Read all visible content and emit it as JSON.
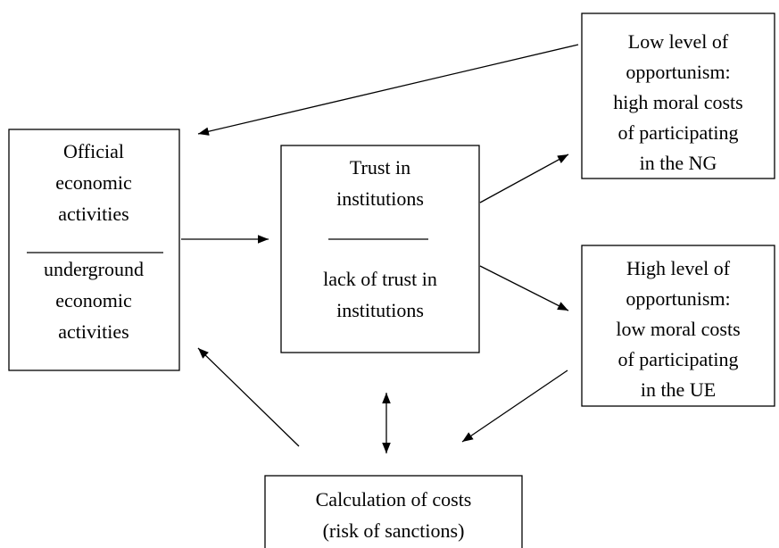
{
  "nodes": [
    {
      "upper": [
        "Official",
        "economic",
        "activities"
      ],
      "lower": [
        "underground",
        "economic",
        "activities"
      ]
    },
    {
      "upper": [
        "Trust in",
        "institutions"
      ],
      "lower": [
        "lack of trust in",
        "institutions"
      ]
    },
    {
      "lines": [
        "Low level of",
        "opportunism:",
        "high moral costs",
        "of participating",
        "in the NG"
      ]
    },
    {
      "lines": [
        "High level of",
        "opportunism:",
        "low moral costs",
        "of participating",
        "in the UE"
      ]
    },
    {
      "lines": [
        "Calculation of costs",
        "(risk of sanctions)"
      ]
    }
  ]
}
